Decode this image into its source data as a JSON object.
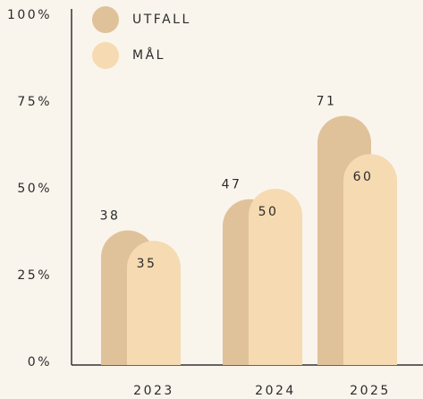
{
  "chart_data": {
    "type": "bar",
    "categories": [
      "2023",
      "2024",
      "2025"
    ],
    "series": [
      {
        "name": "UTFALL",
        "color": "#e0c29a",
        "values": [
          38,
          47,
          71
        ]
      },
      {
        "name": "MÅL",
        "color": "#f6dab2",
        "values": [
          35,
          50,
          60
        ]
      }
    ],
    "ylim": [
      0,
      100
    ],
    "yticks": [
      {
        "value": 0,
        "label": "0%"
      },
      {
        "value": 25,
        "label": "25%"
      },
      {
        "value": 50,
        "label": "50%"
      },
      {
        "value": 75,
        "label": "75%"
      },
      {
        "value": 100,
        "label": "100%"
      }
    ],
    "grid": false,
    "legend": "top-left"
  }
}
